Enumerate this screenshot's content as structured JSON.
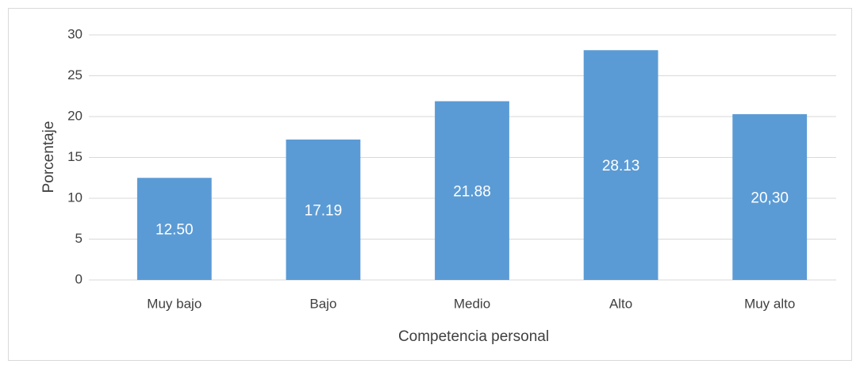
{
  "chart_data": {
    "type": "bar",
    "x_label": "Competencia personal",
    "y_label": "Porcentaje",
    "categories": [
      "Muy bajo",
      "Bajo",
      "Medio",
      "Alto",
      "Muy alto"
    ],
    "values": [
      12.5,
      17.19,
      21.88,
      28.13,
      20.3
    ],
    "value_labels": [
      "12.50",
      "17.19",
      "21.88",
      "28.13",
      "20,30"
    ],
    "color": "#5b9bd5",
    "ylim": [
      0,
      30
    ],
    "yticks": [
      0,
      5,
      10,
      15,
      20,
      25,
      30
    ],
    "grid": true
  }
}
